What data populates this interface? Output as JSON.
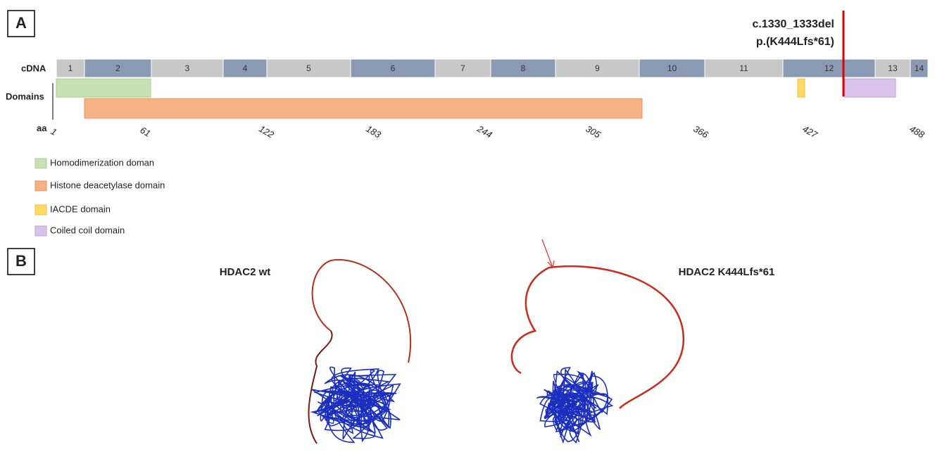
{
  "panel_a": {
    "label": "A",
    "mutation": {
      "cdna": "c.1330_1333del",
      "protein": "p.(K444Lfs*61)"
    },
    "track_labels": {
      "cdna": "cDNA",
      "domains": "Domains",
      "aa": "aa"
    },
    "exons": [
      1,
      2,
      3,
      4,
      5,
      6,
      7,
      8,
      9,
      10,
      11,
      12,
      13,
      14
    ],
    "aa_ticks": [
      1,
      61,
      122,
      183,
      244,
      305,
      366,
      427,
      488
    ],
    "legend": [
      "Homodimerization doman",
      "Histone deacetylase domain",
      "IACDE domain",
      "Coiled coil domain"
    ]
  },
  "panel_b": {
    "label": "B",
    "structures": [
      "HDAC2 wt",
      "HDAC2 K444Lfs*61"
    ]
  }
}
